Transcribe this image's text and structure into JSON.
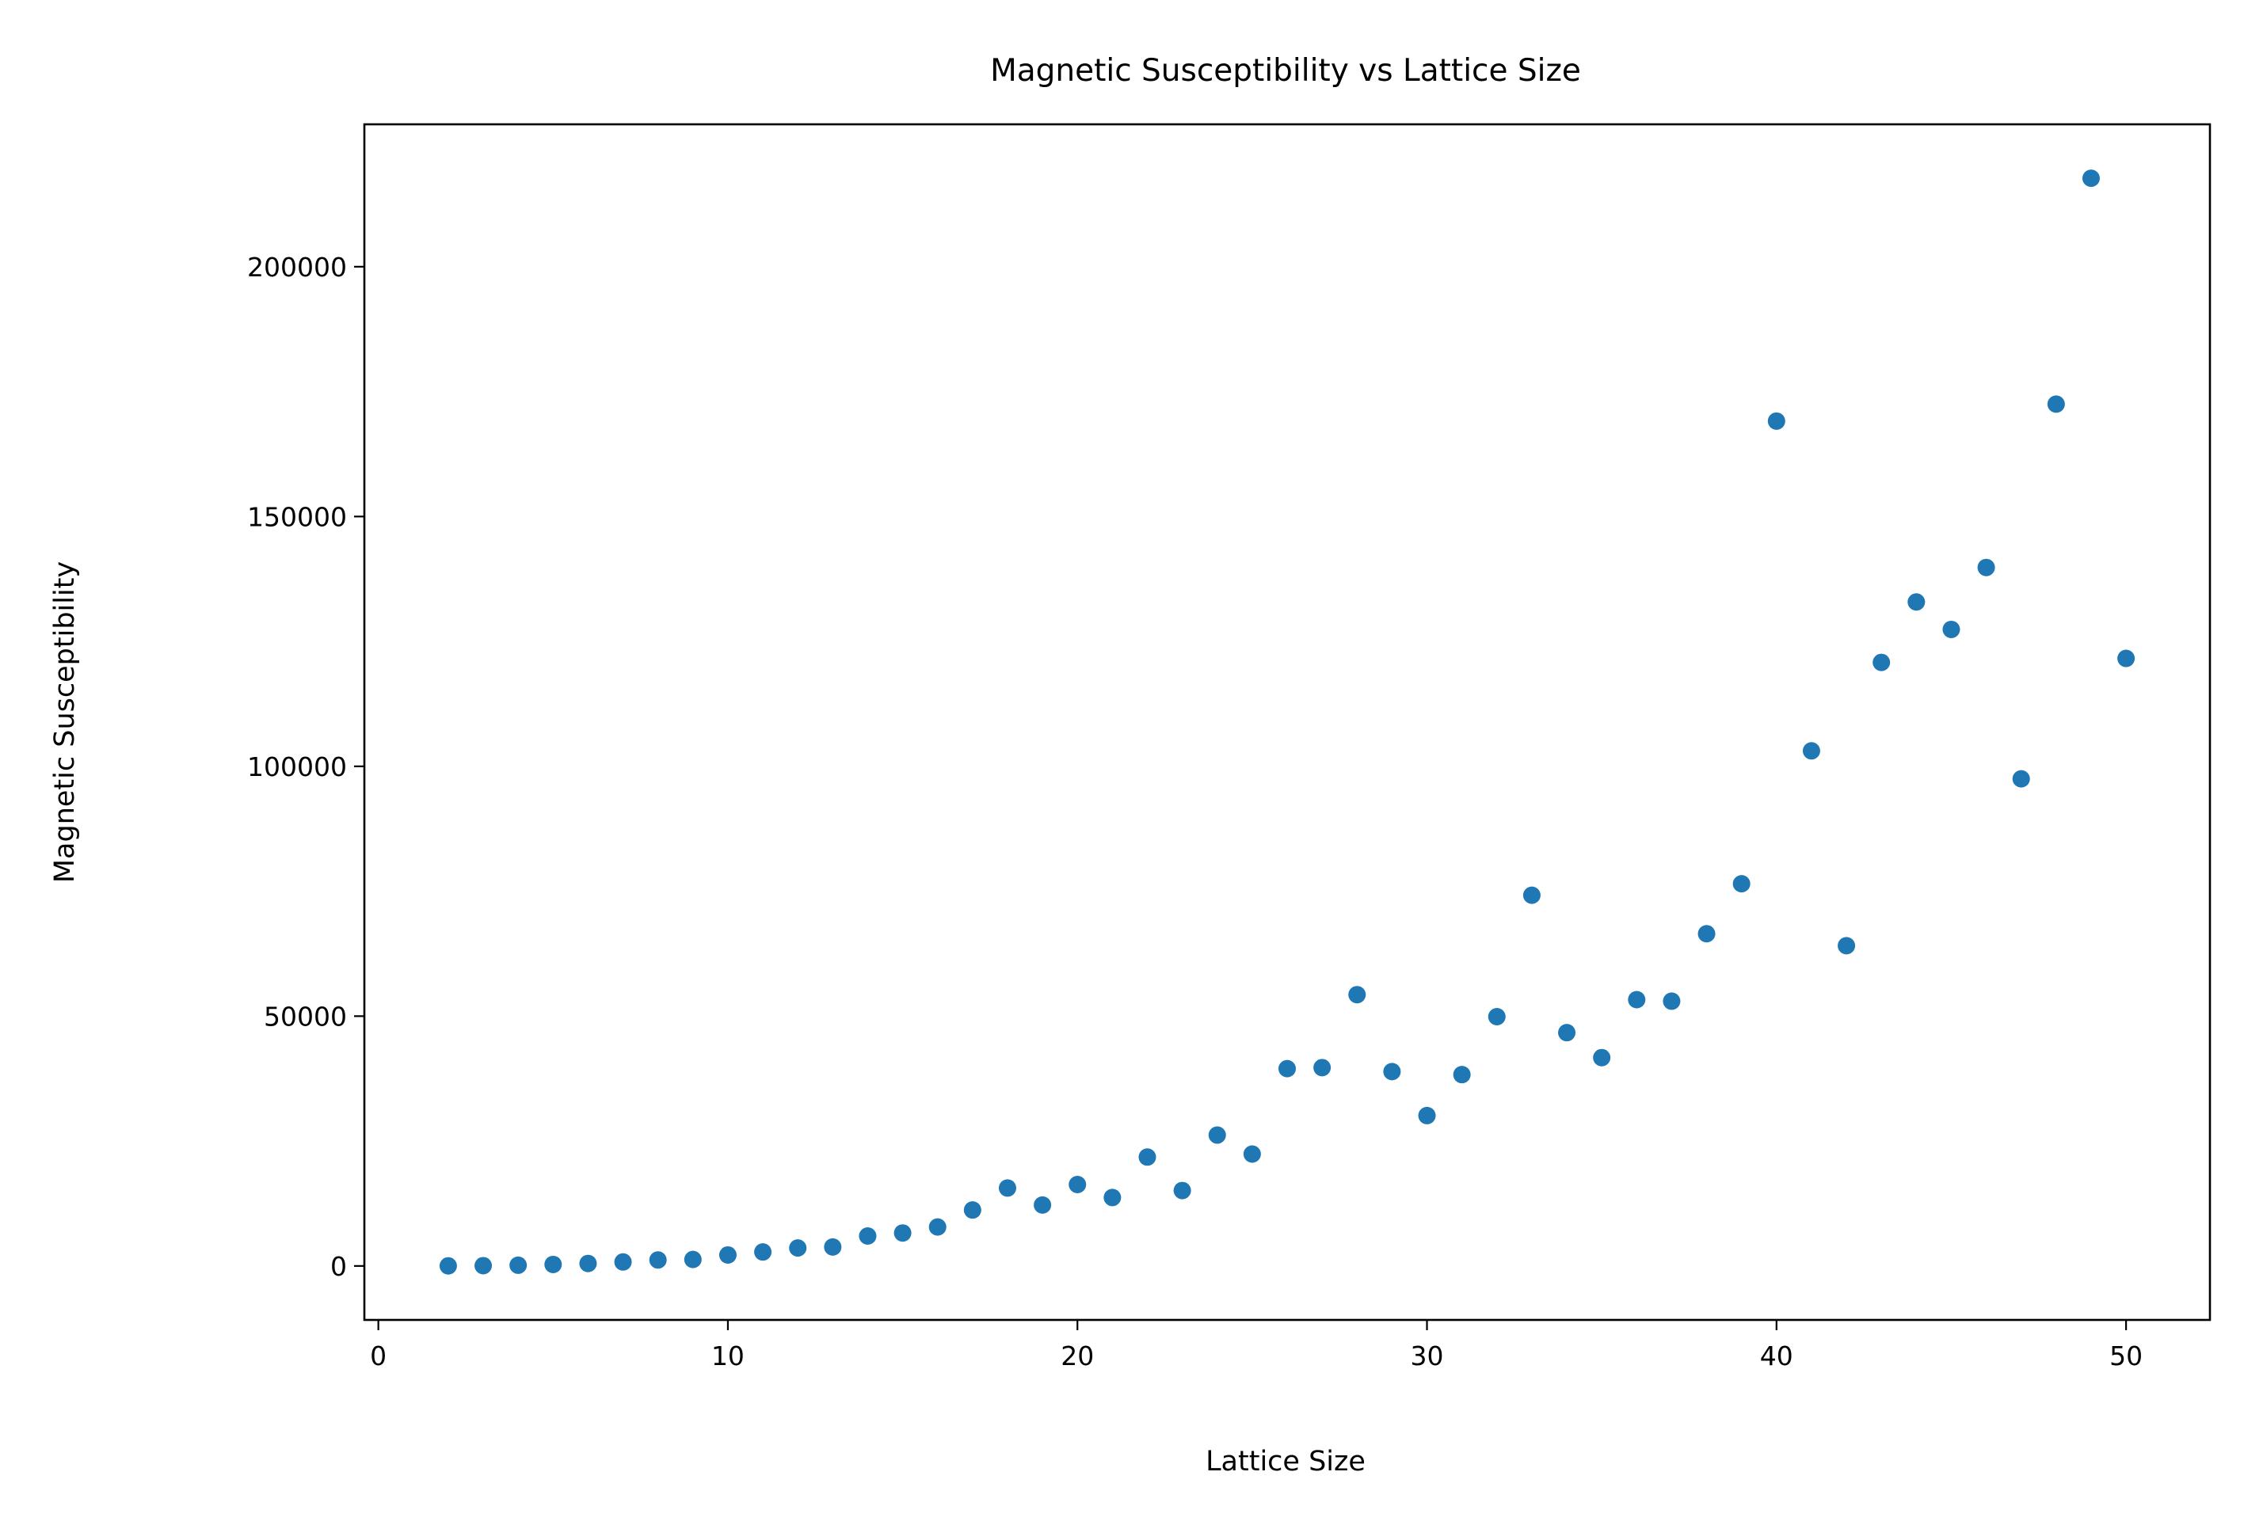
{
  "chart_data": {
    "type": "scatter",
    "title": "Magnetic Susceptibility vs Lattice Size",
    "xlabel": "Lattice Size",
    "ylabel": "Magnetic Susceptibility",
    "xlim": [
      -0.4,
      52.4
    ],
    "ylim": [
      -10800,
      228500
    ],
    "xticks": [
      0,
      10,
      20,
      30,
      40,
      50
    ],
    "xtick_labels": [
      "0",
      "10",
      "20",
      "30",
      "40",
      "50"
    ],
    "yticks": [
      0,
      50000,
      100000,
      150000,
      200000
    ],
    "ytick_labels": [
      "0",
      "50000",
      "100000",
      "150000",
      "200000"
    ],
    "grid": false,
    "marker_color": "#1f77b4",
    "x": [
      2,
      3,
      4,
      5,
      6,
      7,
      8,
      9,
      10,
      11,
      12,
      13,
      14,
      15,
      16,
      17,
      18,
      19,
      20,
      21,
      22,
      23,
      24,
      25,
      26,
      27,
      28,
      29,
      30,
      31,
      32,
      33,
      34,
      35,
      36,
      37,
      38,
      39,
      40,
      41,
      42,
      43,
      44,
      45,
      46,
      47,
      48,
      49,
      50
    ],
    "y": [
      20,
      60,
      150,
      300,
      500,
      800,
      1200,
      1300,
      2200,
      2800,
      3600,
      3800,
      6000,
      6600,
      7800,
      11200,
      15600,
      12200,
      16300,
      13700,
      21800,
      15100,
      26200,
      22400,
      39500,
      39700,
      54300,
      38900,
      30100,
      38300,
      49900,
      74200,
      46700,
      41700,
      53300,
      53000,
      66500,
      76500,
      169100,
      103100,
      64100,
      120800,
      132900,
      127400,
      139800,
      97500,
      172500,
      217700,
      121600
    ]
  }
}
